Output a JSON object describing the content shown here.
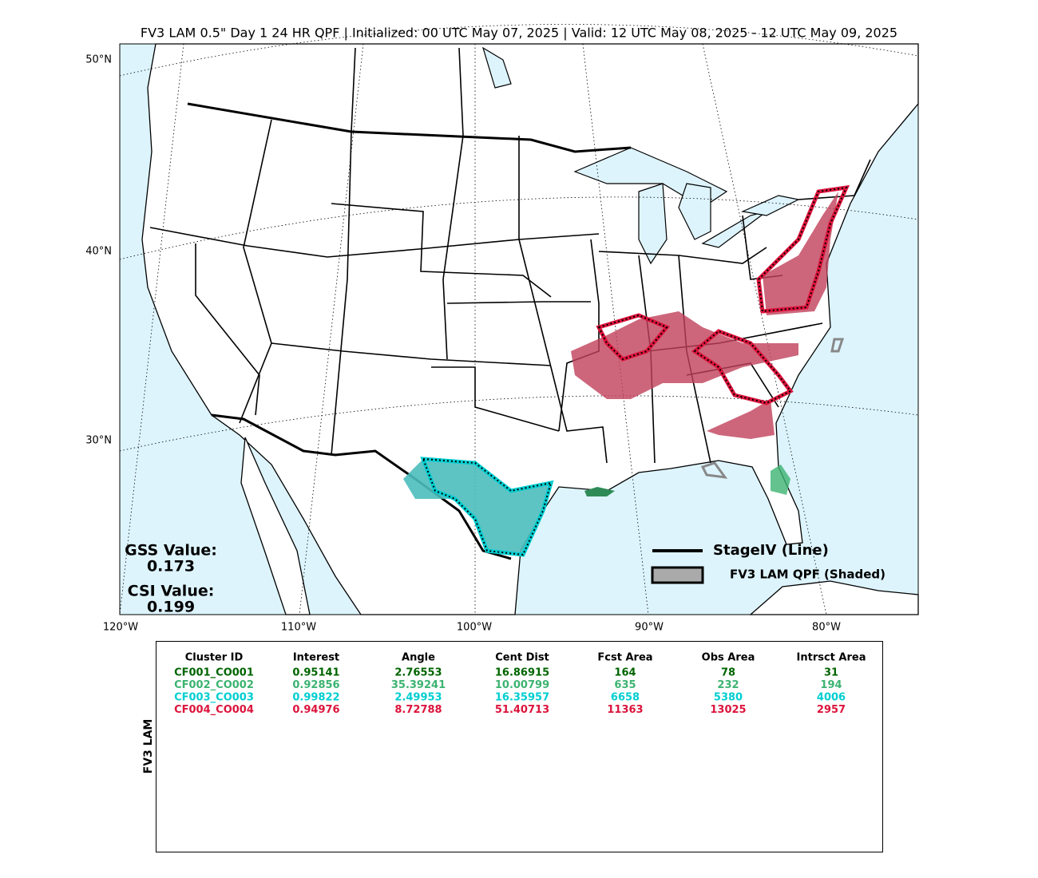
{
  "header": {
    "title": "FV3 LAM 0.5\" Day 1 24 HR QPF | Initialized: 00 UTC May 07, 2025 | Valid: 12 UTC May 08, 2025 - 12 UTC May 09, 2025"
  },
  "map": {
    "lat_labels": [
      "50°N",
      "40°N",
      "30°N"
    ],
    "lon_labels": [
      "120°W",
      "110°W",
      "100°W",
      "90°W",
      "80°W"
    ],
    "scores": [
      {
        "label": "GSS Value:",
        "value": "0.173"
      },
      {
        "label": "CSI Value:",
        "value": "0.199"
      }
    ],
    "legend": [
      "StageIV (Line)",
      "FV3 LAM QPF (Shaded)"
    ]
  },
  "table": {
    "side_label": "FV3 LAM",
    "columns": [
      "Cluster ID",
      "Interest",
      "Angle",
      "Cent Dist",
      "Fcst Area",
      "Obs Area",
      "Intrsct Area"
    ],
    "rows": [
      {
        "color": "#006400",
        "cells": [
          "CF001_CO001",
          "0.95141",
          "2.76553",
          "16.86915",
          "164",
          "78",
          "31"
        ]
      },
      {
        "color": "#3cb371",
        "cells": [
          "CF002_CO002",
          "0.92856",
          "35.39241",
          "10.00799",
          "635",
          "232",
          "194"
        ]
      },
      {
        "color": "#00ced1",
        "cells": [
          "CF003_CO003",
          "0.99822",
          "2.49953",
          "16.35957",
          "6658",
          "5380",
          "4006"
        ]
      },
      {
        "color": "#dc143c",
        "cells": [
          "CF004_CO004",
          "0.94976",
          "8.72788",
          "51.40713",
          "11363",
          "13025",
          "2957"
        ]
      }
    ]
  }
}
